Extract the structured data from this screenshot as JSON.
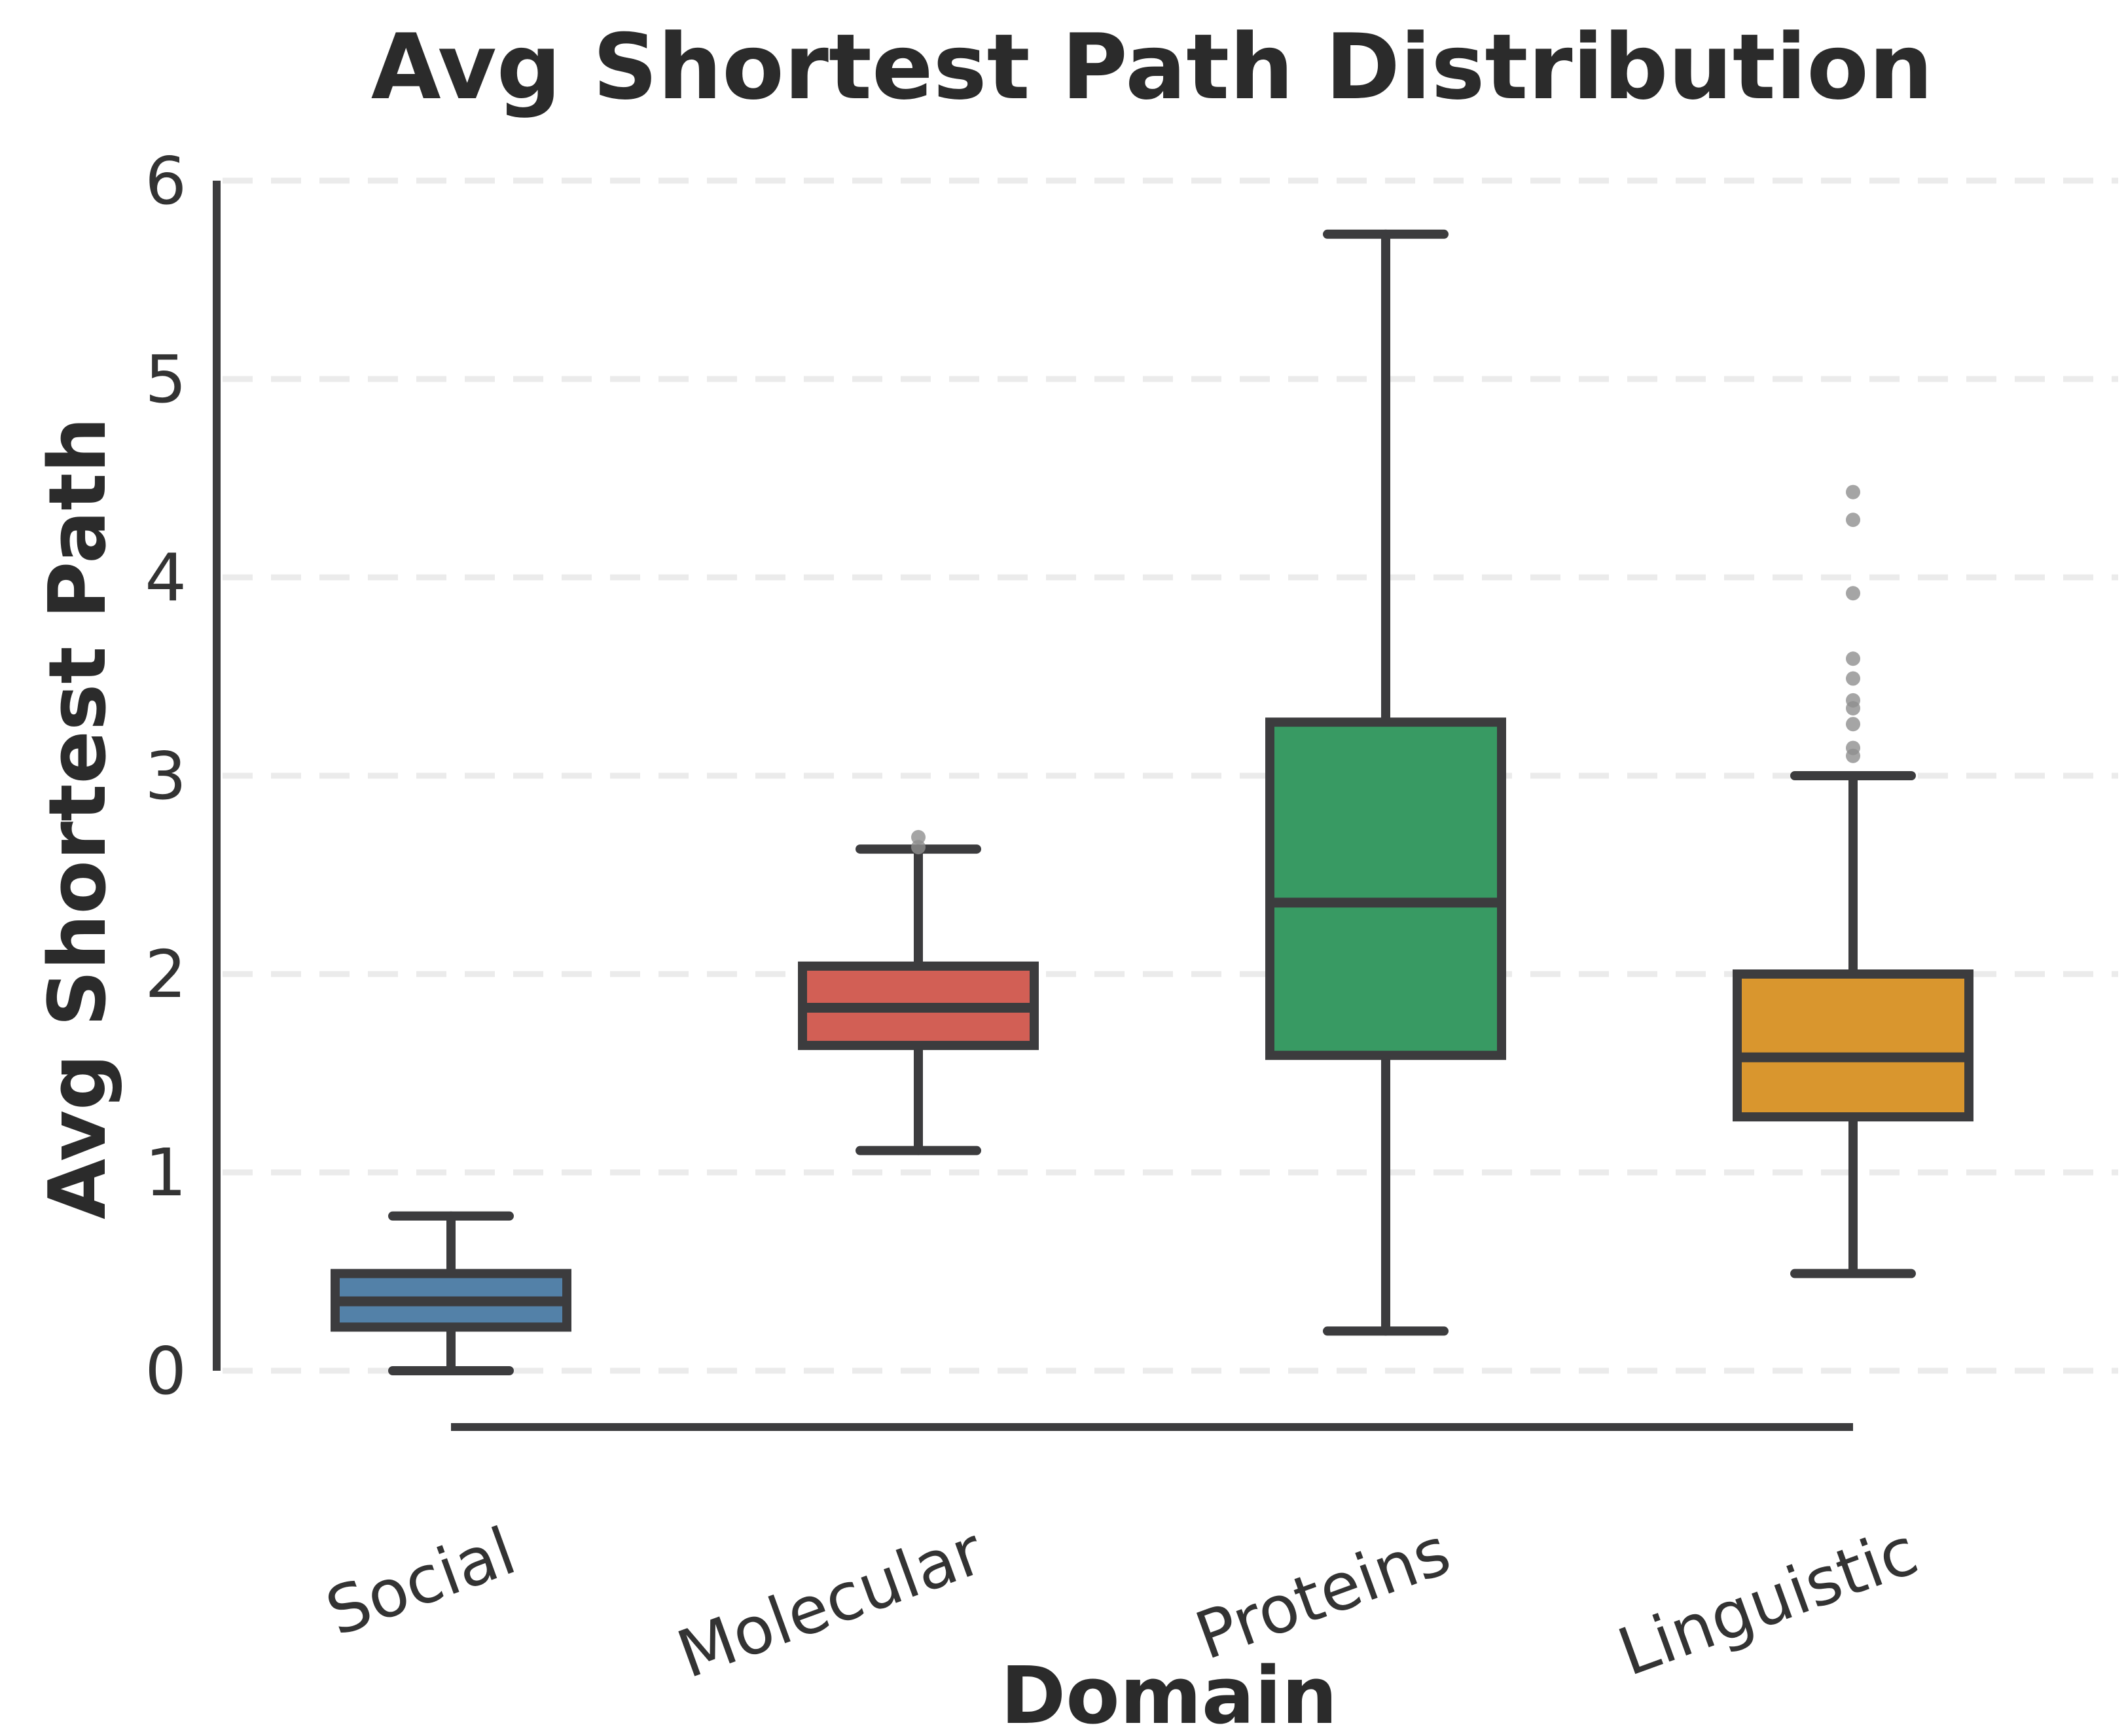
{
  "chart_data": {
    "type": "box",
    "title": "Avg Shortest Path Distribution",
    "xlabel": "Domain",
    "ylabel": "Avg Shortest Path",
    "categories": [
      "Social",
      "Molecular",
      "Proteins",
      "Linguistic"
    ],
    "yticks": [
      0,
      1,
      2,
      3,
      4,
      5,
      6
    ],
    "ylim": [
      0,
      6
    ],
    "grid": "horizontal-dashed",
    "legend": "none",
    "series": [
      {
        "name": "Social",
        "color": "#5381A8",
        "whislo": 0.0,
        "q1": 0.22,
        "med": 0.35,
        "q3": 0.49,
        "whishi": 0.78,
        "fliers": []
      },
      {
        "name": "Molecular",
        "color": "#D25F55",
        "whislo": 1.11,
        "q1": 1.64,
        "med": 1.83,
        "q3": 2.04,
        "whishi": 2.63,
        "fliers": [
          2.64,
          2.69
        ]
      },
      {
        "name": "Proteins",
        "color": "#389A63",
        "whislo": 0.2,
        "q1": 1.59,
        "med": 2.36,
        "q3": 3.27,
        "whishi": 5.73,
        "fliers": []
      },
      {
        "name": "Linguistic",
        "color": "#D9962E",
        "whislo": 0.49,
        "q1": 1.28,
        "med": 1.58,
        "q3": 2.0,
        "whishi": 3.0,
        "fliers": [
          3.1,
          3.14,
          3.26,
          3.34,
          3.38,
          3.49,
          3.59,
          3.92,
          4.29,
          4.43
        ]
      }
    ],
    "style": {
      "background": "#FFFFFF",
      "box_border_color": "#3C3C3E",
      "whisker_color": "#3C3C3E",
      "grid_color": "#EBEBEB",
      "flier_color": "#8F8F8F",
      "text_color": "#2B2B2B",
      "tick_color": "#333333"
    }
  }
}
